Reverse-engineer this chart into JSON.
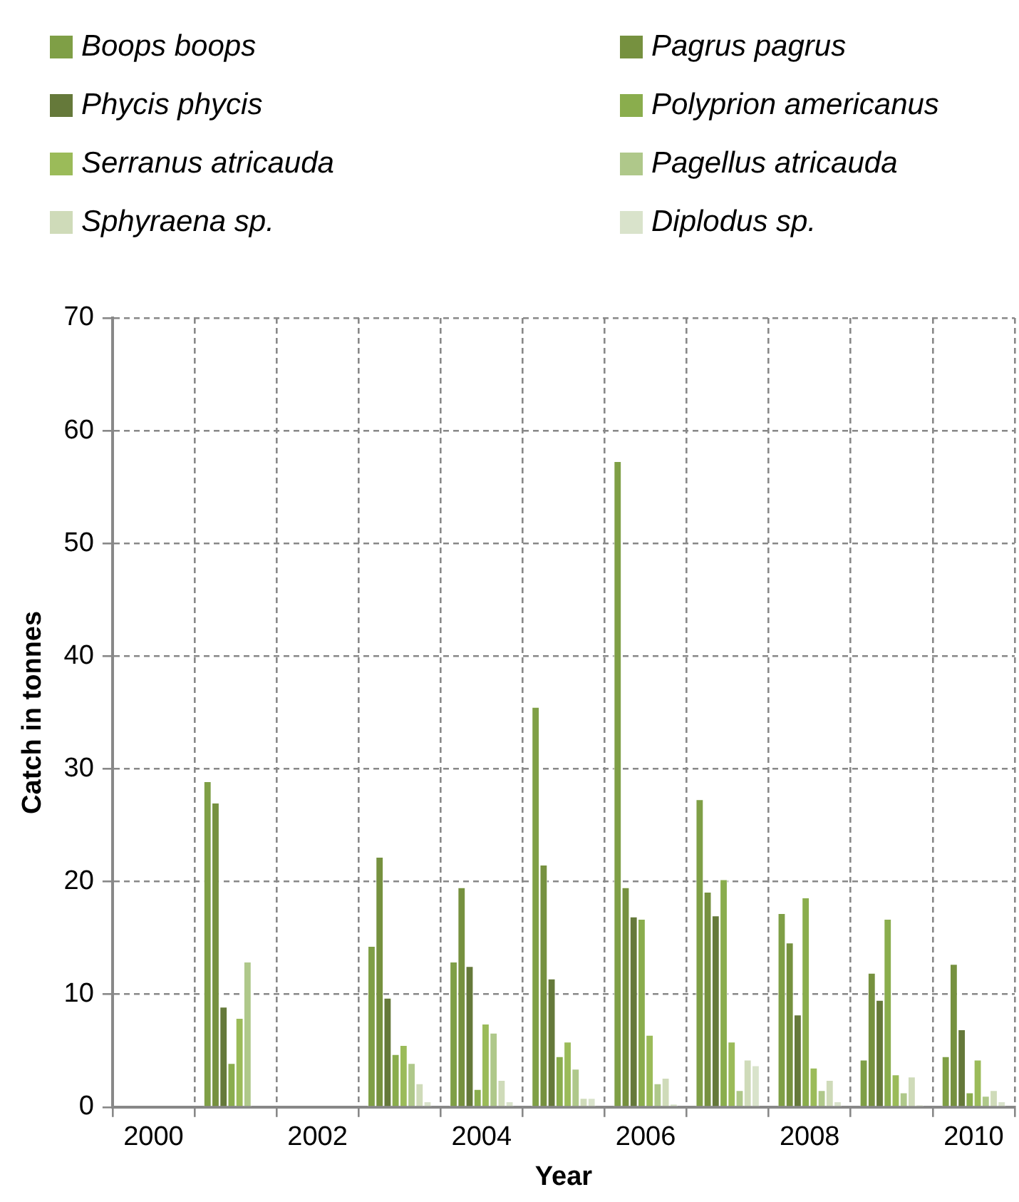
{
  "chart_data": {
    "type": "bar",
    "xlabel": "Year",
    "ylabel": "Catch in tonnes",
    "categories": [
      "2000",
      null,
      "2002",
      null,
      "2004",
      null,
      "2006",
      null,
      "2008",
      null,
      "2010"
    ],
    "series": [
      {
        "name": "Boops boops",
        "color": "#7f9f46",
        "values": [
          null,
          28.9,
          null,
          14.3,
          12.9,
          35.5,
          57.3,
          27.3,
          17.2,
          4.2,
          4.5
        ]
      },
      {
        "name": "Pagrus pagrus",
        "color": "#76913f",
        "values": [
          null,
          27.0,
          null,
          22.2,
          19.5,
          21.5,
          19.5,
          19.1,
          14.6,
          11.9,
          12.7
        ]
      },
      {
        "name": "Phycis phycis",
        "color": "#65793a",
        "values": [
          null,
          8.9,
          null,
          9.7,
          12.5,
          11.4,
          16.9,
          17.0,
          8.2,
          9.5,
          6.9
        ]
      },
      {
        "name": "Polyprion americanus",
        "color": "#8aad4d",
        "values": [
          null,
          3.9,
          null,
          4.7,
          1.6,
          4.5,
          16.7,
          20.2,
          18.6,
          16.7,
          1.3
        ]
      },
      {
        "name": "Serranus atricauda",
        "color": "#9bbb59",
        "values": [
          null,
          7.9,
          null,
          5.5,
          7.4,
          5.8,
          6.4,
          5.8,
          3.5,
          2.9,
          4.2
        ]
      },
      {
        "name": "Pagellus atricauda",
        "color": "#afc88a",
        "values": [
          null,
          12.9,
          null,
          3.9,
          6.6,
          3.4,
          2.1,
          1.5,
          1.5,
          1.3,
          1.0
        ]
      },
      {
        "name": "Sphyraena sp.",
        "color": "#cfdbb9",
        "values": [
          null,
          null,
          null,
          2.1,
          2.4,
          0.8,
          2.6,
          4.2,
          2.4,
          2.7,
          1.5
        ]
      },
      {
        "name": "Diplodus sp.",
        "color": "#d9e3cb",
        "values": [
          null,
          null,
          null,
          0.5,
          0.5,
          0.8,
          0.3,
          3.7,
          0.5,
          0.2,
          0.5
        ]
      }
    ],
    "ylim": [
      0,
      70
    ],
    "yticks": [
      0,
      10,
      20,
      30,
      40,
      50,
      60,
      70
    ],
    "grid": true,
    "legend": "top"
  }
}
